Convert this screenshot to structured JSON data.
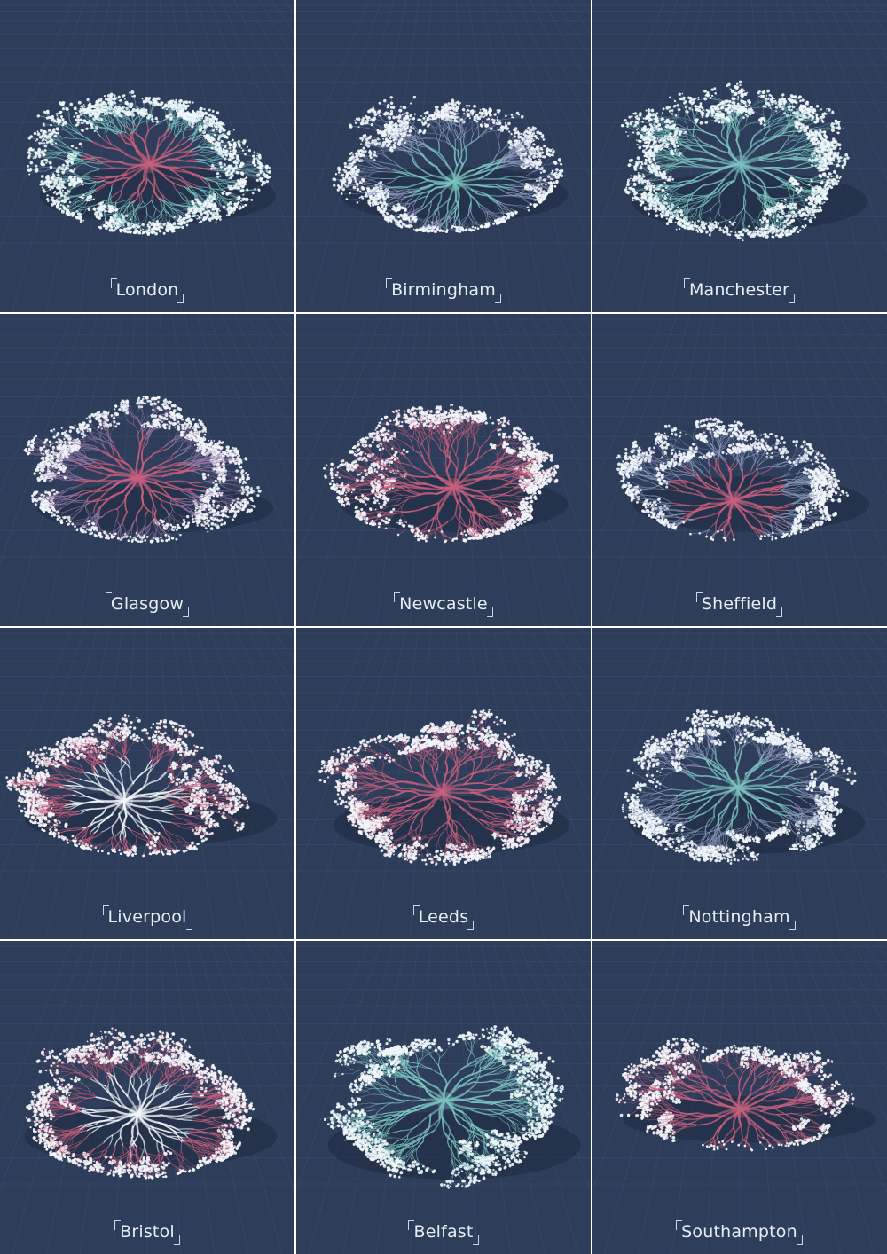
{
  "panels": [
    {
      "label": "London",
      "palette": "teal",
      "hub": "pink"
    },
    {
      "label": "Birmingham",
      "palette": "slate",
      "hub": "teal"
    },
    {
      "label": "Manchester",
      "palette": "teal",
      "hub": "teal"
    },
    {
      "label": "Glasgow",
      "palette": "mauve",
      "hub": "pink"
    },
    {
      "label": "Newcastle",
      "palette": "pink",
      "hub": "pink"
    },
    {
      "label": "Sheffield",
      "palette": "slate",
      "hub": "pink"
    },
    {
      "label": "Liverpool",
      "palette": "pink",
      "hub": "white"
    },
    {
      "label": "Leeds",
      "palette": "pink",
      "hub": "pink"
    },
    {
      "label": "Nottingham",
      "palette": "slate",
      "hub": "teal"
    },
    {
      "label": "Bristol",
      "palette": "pink",
      "hub": "white"
    },
    {
      "label": "Belfast",
      "palette": "teal",
      "hub": "teal"
    },
    {
      "label": "Southampton",
      "palette": "pink",
      "hub": "pink"
    }
  ],
  "colors": {
    "background": "#2e3d5a",
    "gridline": "#3e4e6c",
    "divider": "#ffffff",
    "teal": "#7cc4c0",
    "slate": "#8f9bbd",
    "mauve": "#9a7aa6",
    "pink": "#c8607e",
    "white": "#f2f6fb",
    "label": "#e8eef7"
  }
}
